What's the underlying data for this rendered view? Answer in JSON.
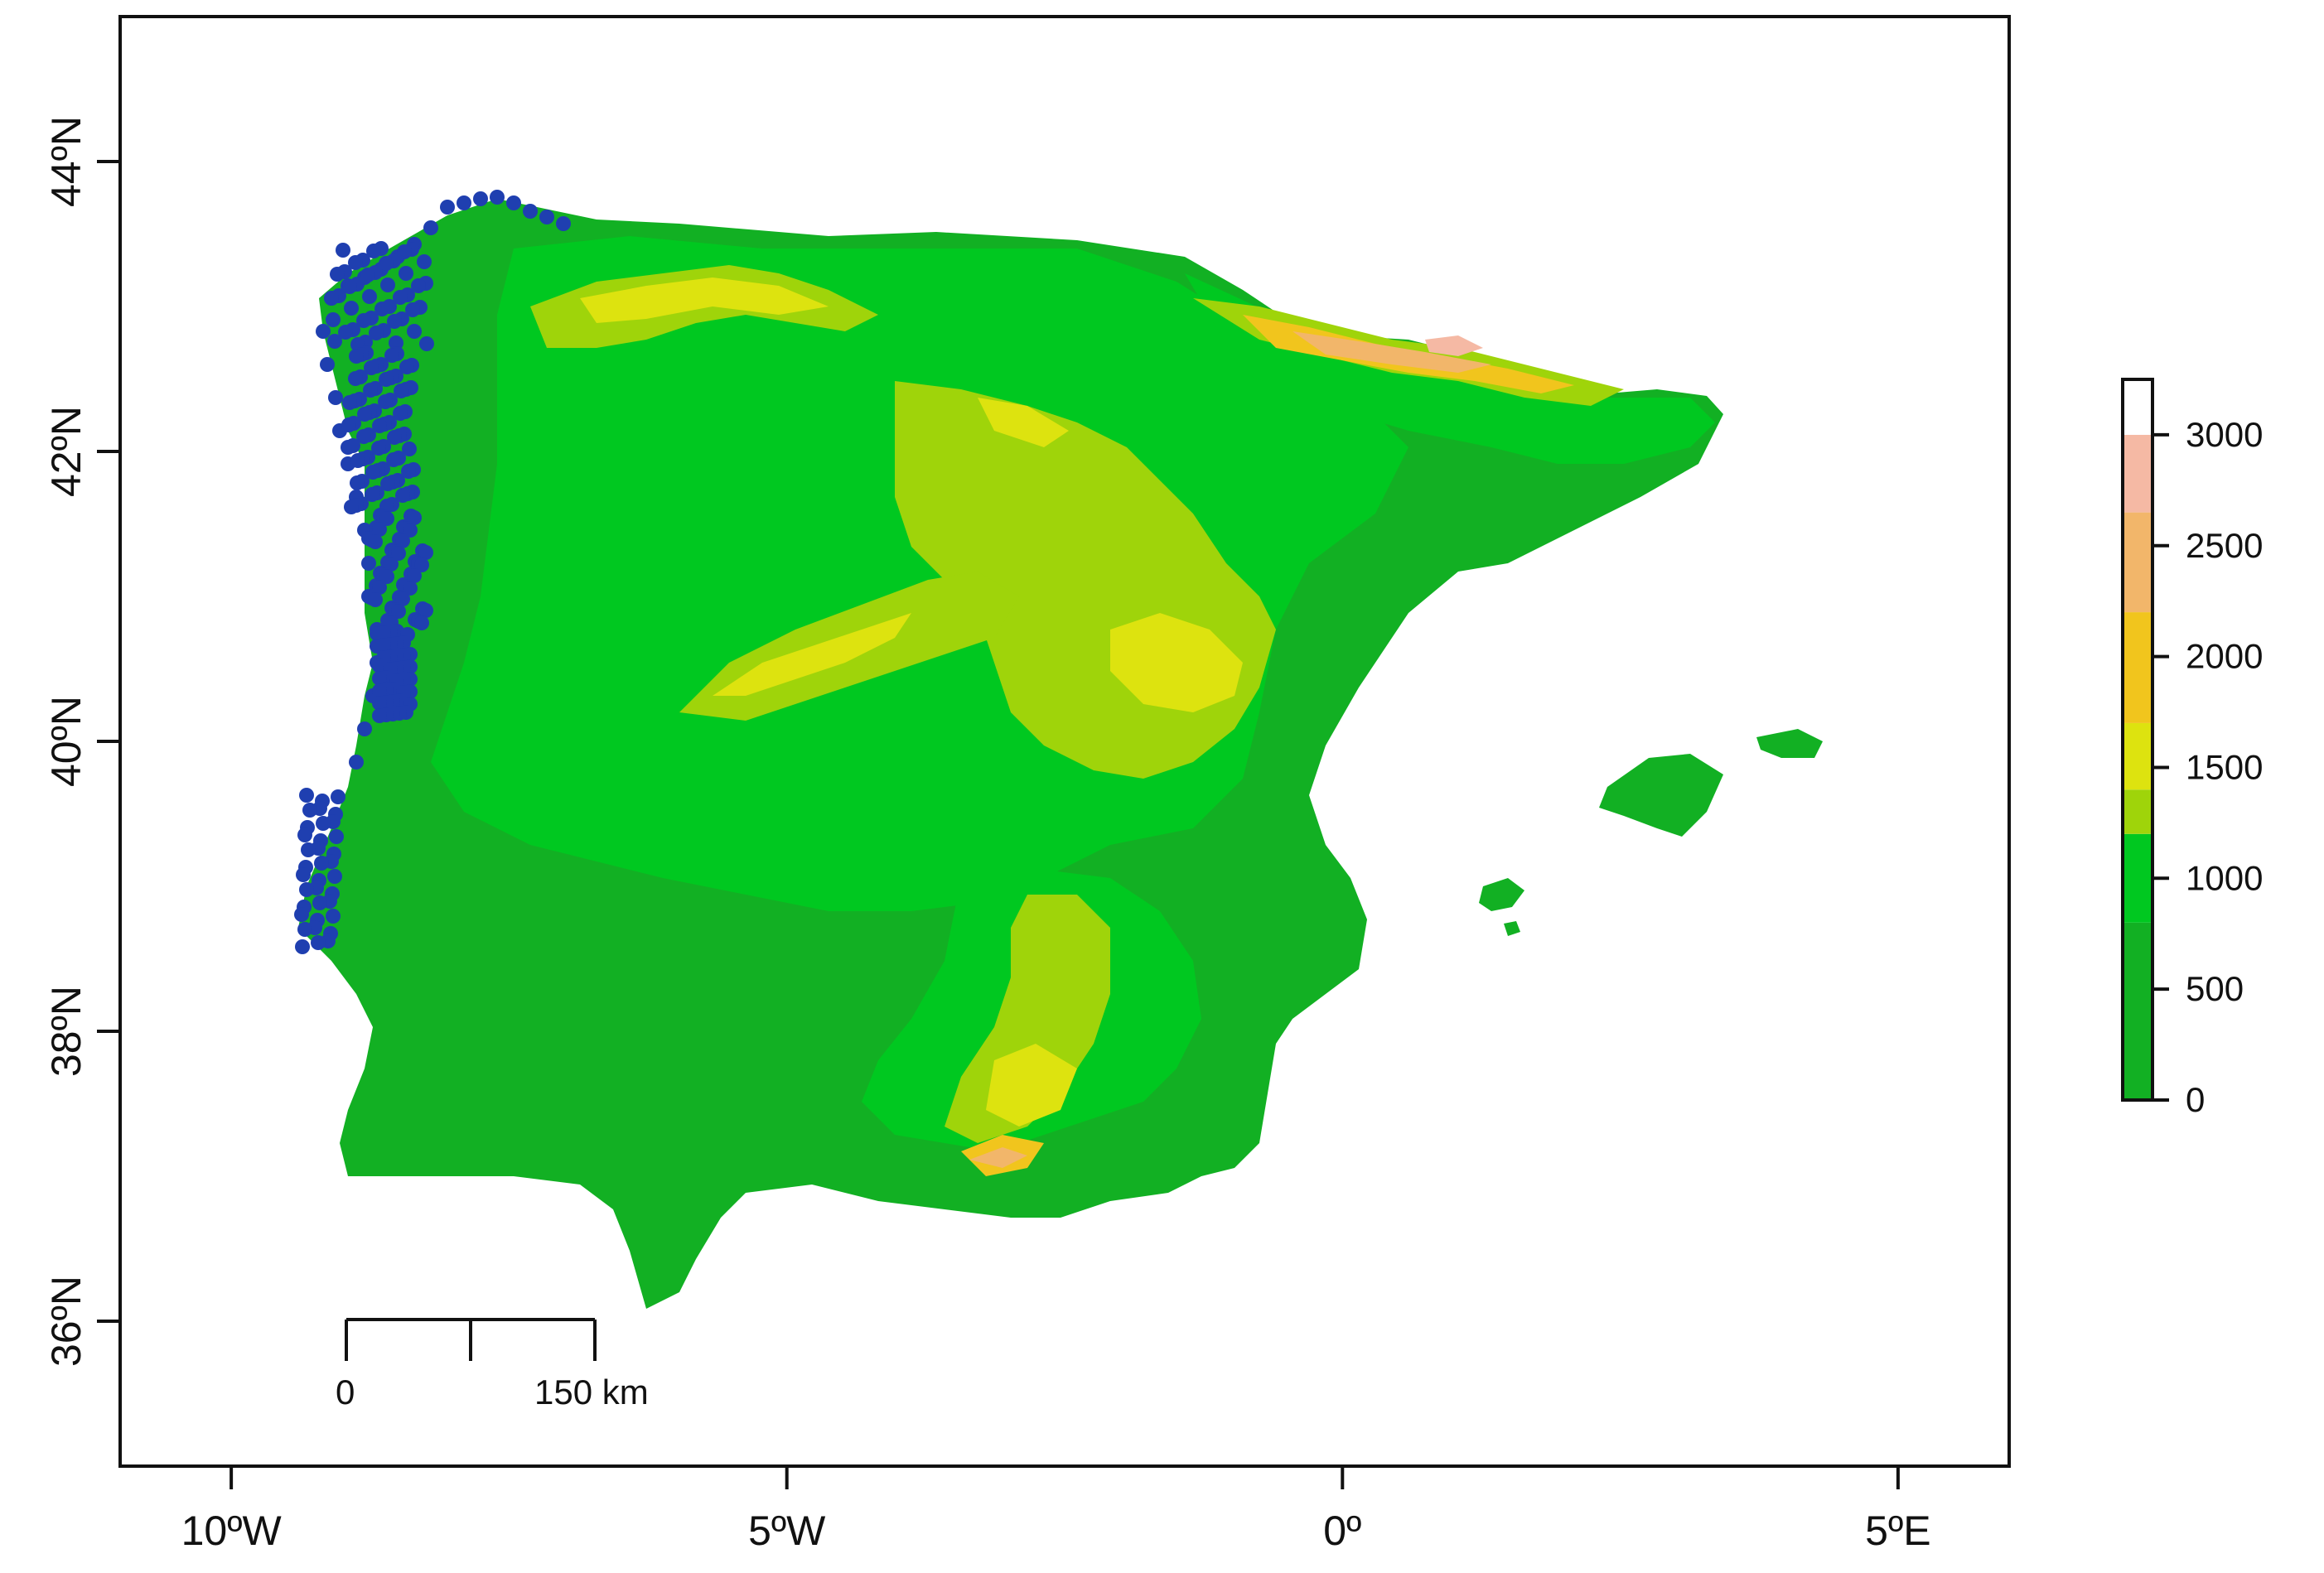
{
  "map": {
    "x_axis": {
      "ticks": [
        {
          "lon": -10,
          "label": "10ºW"
        },
        {
          "lon": -5,
          "label": "5ºW"
        },
        {
          "lon": 0,
          "label": "0º"
        },
        {
          "lon": 5,
          "label": "5ºE"
        }
      ]
    },
    "y_axis": {
      "ticks": [
        {
          "lat": 36,
          "label": "36ºN"
        },
        {
          "lat": 38,
          "label": "38ºN"
        },
        {
          "lat": 40,
          "label": "40ºN"
        },
        {
          "lat": 42,
          "label": "42ºN"
        },
        {
          "lat": 44,
          "label": "44ºN"
        }
      ]
    },
    "extent": {
      "lon": [
        -11,
        6
      ],
      "lat": [
        35,
        45
      ]
    },
    "scale_bar": {
      "start_label": "0",
      "end_label": "150 km"
    },
    "legend": {
      "range": [
        0,
        3250
      ],
      "ticks": [
        {
          "value": 0,
          "label": "0"
        },
        {
          "value": 500,
          "label": "500"
        },
        {
          "value": 1000,
          "label": "1000"
        },
        {
          "value": 1500,
          "label": "1500"
        },
        {
          "value": 2000,
          "label": "2000"
        },
        {
          "value": 2500,
          "label": "2500"
        },
        {
          "value": 3000,
          "label": "3000"
        }
      ],
      "bands": [
        {
          "from": 0,
          "to": 800,
          "color": "#12b023"
        },
        {
          "from": 800,
          "to": 1200,
          "color": "#00c820"
        },
        {
          "from": 1200,
          "to": 1400,
          "color": "#9fd40a"
        },
        {
          "from": 1400,
          "to": 1700,
          "color": "#dde30f"
        },
        {
          "from": 1700,
          "to": 2200,
          "color": "#f1c51d"
        },
        {
          "from": 2200,
          "to": 2650,
          "color": "#f2b66a"
        },
        {
          "from": 2650,
          "to": 3000,
          "color": "#f5b9a4"
        },
        {
          "from": 3000,
          "to": 3250,
          "color": "#ffffff"
        }
      ]
    },
    "colors": {
      "lowland": "#12b023",
      "plateau": "#00c820",
      "mid": "#9fd40a",
      "high": "#dde30f",
      "higher": "#f1c51d",
      "peak": "#f2b66a",
      "summit": "#f5b9a4",
      "occurrence": "#1f3fb0"
    }
  }
}
